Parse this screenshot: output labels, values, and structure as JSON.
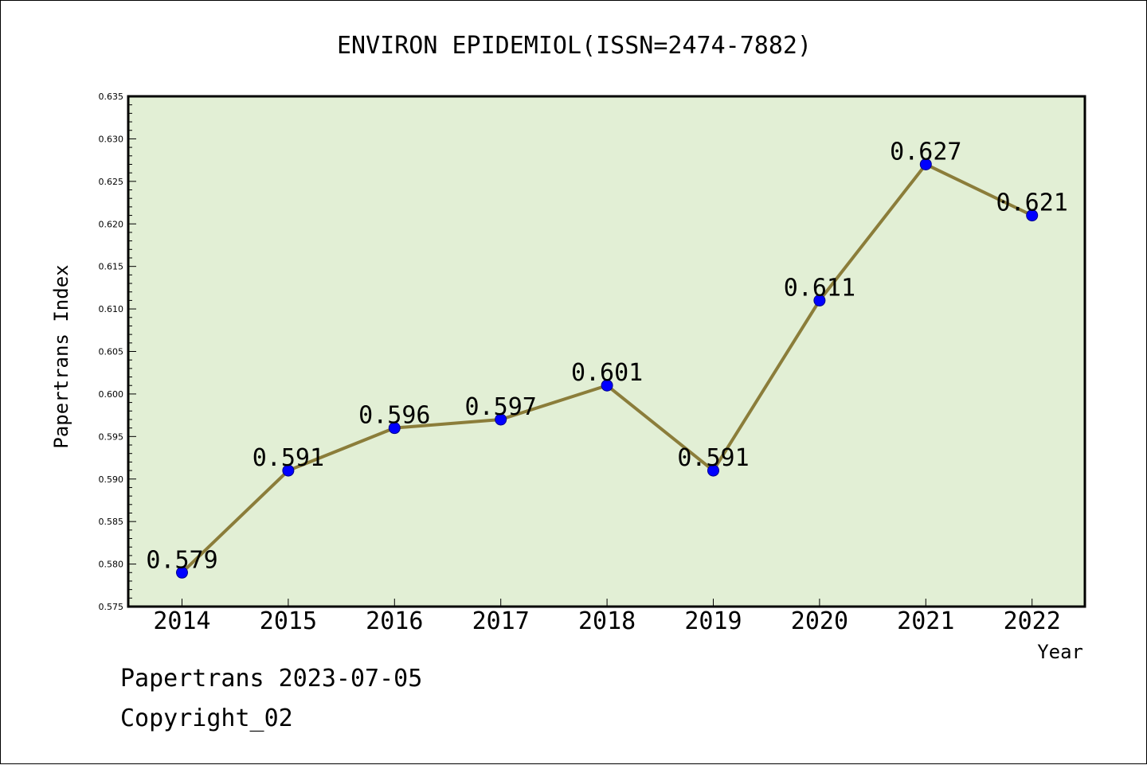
{
  "chart_data": {
    "type": "line",
    "title": "ENVIRON EPIDEMIOL(ISSN=2474-7882)",
    "xlabel": "Year",
    "ylabel": "Papertrans Index",
    "categories": [
      "2014",
      "2015",
      "2016",
      "2017",
      "2018",
      "2019",
      "2020",
      "2021",
      "2022"
    ],
    "series": [
      {
        "values": [
          0.579,
          0.591,
          0.596,
          0.597,
          0.601,
          0.591,
          0.611,
          0.627,
          0.621
        ],
        "labels": [
          "0.579",
          "0.591",
          "0.596",
          "0.597",
          "0.601",
          "0.591",
          "0.611",
          "0.627",
          "0.621"
        ]
      }
    ],
    "ylim": [
      0.575,
      0.635
    ],
    "y_ticks": [
      "0.575",
      "0.580",
      "0.585",
      "0.590",
      "0.595",
      "0.600",
      "0.605",
      "0.610",
      "0.615",
      "0.620",
      "0.625",
      "0.630",
      "0.635"
    ],
    "grid": false,
    "colors": {
      "plot_background": "#e2efd5",
      "line": "#8b7d3a",
      "marker": "#0000ff"
    }
  },
  "footer": {
    "line1": "Papertrans 2023-07-05",
    "line2": "Copyright_02"
  }
}
